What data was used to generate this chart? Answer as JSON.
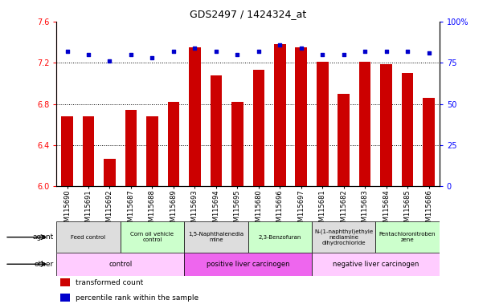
{
  "title": "GDS2497 / 1424324_at",
  "gsm_labels": [
    "GSM115690",
    "GSM115691",
    "GSM115692",
    "GSM115687",
    "GSM115688",
    "GSM115689",
    "GSM115693",
    "GSM115694",
    "GSM115695",
    "GSM115680",
    "GSM115696",
    "GSM115697",
    "GSM115681",
    "GSM115682",
    "GSM115683",
    "GSM115684",
    "GSM115685",
    "GSM115686"
  ],
  "bar_values": [
    6.68,
    6.68,
    6.27,
    6.74,
    6.68,
    6.82,
    7.35,
    7.08,
    6.82,
    7.13,
    7.38,
    7.35,
    7.21,
    6.9,
    7.21,
    7.19,
    7.1,
    6.86
  ],
  "percentile_values": [
    82,
    80,
    76,
    80,
    78,
    82,
    84,
    82,
    80,
    82,
    86,
    84,
    80,
    80,
    82,
    82,
    82,
    81
  ],
  "ylim_left": [
    6.0,
    7.6
  ],
  "ylim_right": [
    0,
    100
  ],
  "yticks_left": [
    6.0,
    6.4,
    6.8,
    7.2,
    7.6
  ],
  "yticks_right": [
    0,
    25,
    50,
    75,
    100
  ],
  "bar_color": "#cc0000",
  "dot_color": "#0000cc",
  "agent_groups": [
    {
      "label": "Feed control",
      "start": 0,
      "end": 3,
      "color": "#dddddd"
    },
    {
      "label": "Corn oil vehicle\ncontrol",
      "start": 3,
      "end": 6,
      "color": "#ccffcc"
    },
    {
      "label": "1,5-Naphthalenedia\nmine",
      "start": 6,
      "end": 9,
      "color": "#dddddd"
    },
    {
      "label": "2,3-Benzofuran",
      "start": 9,
      "end": 12,
      "color": "#ccffcc"
    },
    {
      "label": "N-(1-naphthyl)ethyle\nnediamine\ndihydrochloride",
      "start": 12,
      "end": 15,
      "color": "#dddddd"
    },
    {
      "label": "Pentachloronitroben\nzene",
      "start": 15,
      "end": 18,
      "color": "#ccffcc"
    }
  ],
  "other_groups": [
    {
      "label": "control",
      "start": 0,
      "end": 6,
      "color": "#ffccff"
    },
    {
      "label": "positive liver carcinogen",
      "start": 6,
      "end": 12,
      "color": "#ee66ee"
    },
    {
      "label": "negative liver carcinogen",
      "start": 12,
      "end": 18,
      "color": "#ffccff"
    }
  ],
  "legend_items": [
    {
      "label": "transformed count",
      "color": "#cc0000"
    },
    {
      "label": "percentile rank within the sample",
      "color": "#0000cc"
    }
  ],
  "dotted_grid_values": [
    6.4,
    6.8,
    7.2
  ],
  "title_fontsize": 9,
  "axis_label_fontsize": 7,
  "tick_fontsize": 6,
  "ann_fontsize": 6
}
